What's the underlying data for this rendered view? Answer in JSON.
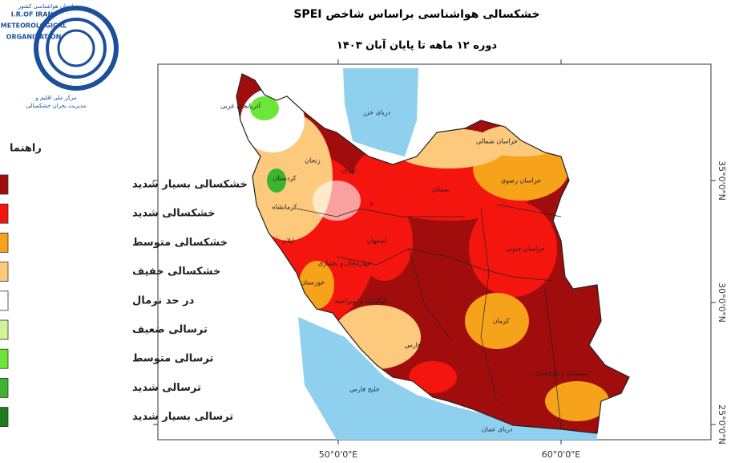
{
  "logo": {
    "org_fa": "سازمان هواشناسی کشور",
    "line1": "I.R.OF IRAN",
    "line2": "METEOROLOGICAL",
    "line3": "ORGANIZATION",
    "center1": "مرکز ملی اقلیم و",
    "center2": "مدیریت بحران خشکسالی"
  },
  "header": {
    "title": "خشکسالی هواشناسی براساس شاخص SPEI",
    "subtitle": "دوره ۱۲ ماهه تا پایان آبان ۱۴۰۳"
  },
  "legend": {
    "title": "راهنما",
    "items": [
      {
        "label": "خشکسالی بسیار شدید",
        "color": "#a10d0d"
      },
      {
        "label": "خشکسالی شدید",
        "color": "#f5150f"
      },
      {
        "label": "خشکسالی متوسط",
        "color": "#f7a21b"
      },
      {
        "label": "خشکسالی خفیف",
        "color": "#fcc97d"
      },
      {
        "label": "در حد نرمال",
        "color": "#ffffff"
      },
      {
        "label": "ترسالی ضعیف",
        "color": "#d3f29a"
      },
      {
        "label": "ترسالی متوسط",
        "color": "#6de63a"
      },
      {
        "label": "ترسالی شدید",
        "color": "#3bb52f"
      },
      {
        "label": "ترسالی بسیار شدید",
        "color": "#1d7a1d"
      }
    ]
  },
  "map": {
    "lat_ticks": [
      {
        "value": 35,
        "label": "35°0'0\"N"
      },
      {
        "value": 30,
        "label": "30°0'0\"N"
      },
      {
        "value": 25,
        "label": "25°0'0\"N"
      }
    ],
    "lon_ticks": [
      {
        "value": 50,
        "label": "50°0'0\"E"
      },
      {
        "value": 60,
        "label": "60°0'0\"E"
      }
    ],
    "seas": [
      "دریای خزر",
      "خلیج فارس",
      "دریای عمان"
    ],
    "provinces": [
      "آذربایجان غربی",
      "زنجان",
      "کردستان",
      "کرمانشاه",
      "ایلام",
      "خوزستان",
      "تهران",
      "سمنان",
      "خراسان شمالی",
      "خراسان رضوی",
      "خراسان جنوبی",
      "اصفهان",
      "فارس",
      "کرمان",
      "سیستان و بلوچستان",
      "چهارمحال و بختیاری",
      "کهگیلویه و بویراحمد"
    ]
  }
}
